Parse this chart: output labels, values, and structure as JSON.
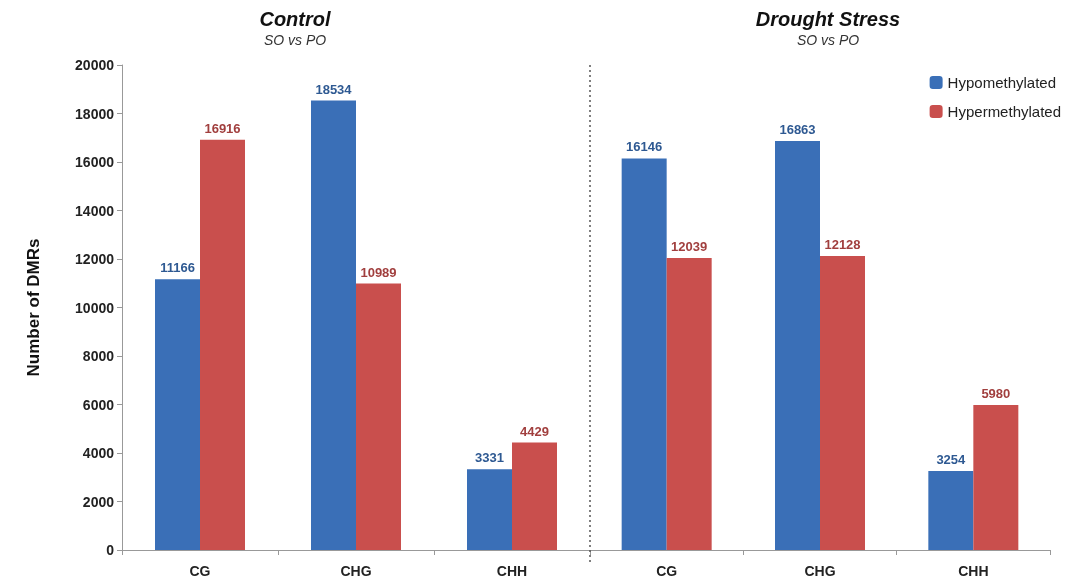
{
  "chart_data": [
    {
      "type": "bar",
      "title": "Control",
      "subtitle": "SO vs PO",
      "ylabel": "Number of DMRs",
      "categories": [
        "CG",
        "CHG",
        "CHH"
      ],
      "series": [
        {
          "color": "#3a6fb7",
          "values": [
            11166,
            18534,
            3331
          ]
        },
        {
          "color": "#c94f4d",
          "values": [
            16916,
            10989,
            4429
          ]
        }
      ],
      "ylim": [
        0,
        20000
      ],
      "yticks": [
        0,
        2000,
        4000,
        6000,
        8000,
        10000,
        12000,
        14000,
        16000,
        18000,
        20000
      ],
      "data_labels": true,
      "grid": false,
      "legend": false
    },
    {
      "type": "bar",
      "title": "Drought Stress",
      "subtitle": "SO vs PO",
      "categories": [
        "CG",
        "CHG",
        "CHH"
      ],
      "series": [
        {
          "name": "Hypomethylated",
          "color": "#3a6fb7",
          "values": [
            16146,
            16863,
            3254
          ]
        },
        {
          "name": "Hypermethylated",
          "color": "#c94f4d",
          "values": [
            12039,
            12128,
            5980
          ]
        }
      ],
      "ylim": [
        0,
        20000
      ],
      "yticks": [
        0,
        2000,
        4000,
        6000,
        8000,
        10000,
        12000,
        14000,
        16000,
        18000,
        20000
      ],
      "data_labels": true,
      "grid": false,
      "legend": "top right",
      "tick_labels": "x"
    }
  ]
}
